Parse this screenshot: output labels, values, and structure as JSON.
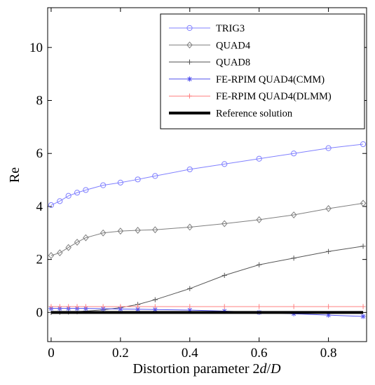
{
  "chart_data": {
    "type": "line",
    "title": "",
    "xlabel": "Distortion parameter 2d/D",
    "xlabel_parts": [
      {
        "text": "Distortion parameter 2",
        "italic": false
      },
      {
        "text": "d",
        "italic": true
      },
      {
        "text": "/",
        "italic": false
      },
      {
        "text": "D",
        "italic": true
      }
    ],
    "ylabel": "Re",
    "xlim": [
      -0.01,
      0.91
    ],
    "ylim": [
      -1.1,
      11.5
    ],
    "xticks": [
      0,
      0.2,
      0.4,
      0.6,
      0.8
    ],
    "xtick_labels": [
      "0",
      "0.2",
      "0.4",
      "0.6",
      "0.8"
    ],
    "yticks": [
      0,
      2,
      4,
      6,
      8,
      10
    ],
    "ytick_labels": [
      "0",
      "2",
      "4",
      "6",
      "8",
      "10"
    ],
    "grid": false,
    "legend_position": "top-right",
    "series": [
      {
        "name": "TRIG3",
        "color": "#8080ff",
        "marker": "circle",
        "x": [
          0,
          0.025,
          0.05,
          0.075,
          0.1,
          0.15,
          0.2,
          0.25,
          0.3,
          0.4,
          0.5,
          0.6,
          0.7,
          0.8,
          0.9
        ],
        "y": [
          4.05,
          4.2,
          4.4,
          4.52,
          4.62,
          4.8,
          4.9,
          5.02,
          5.15,
          5.4,
          5.6,
          5.8,
          6.0,
          6.2,
          6.35
        ]
      },
      {
        "name": "QUAD4",
        "color": "#7f7f7f",
        "marker": "diamond",
        "x": [
          0,
          0.025,
          0.05,
          0.075,
          0.1,
          0.15,
          0.2,
          0.25,
          0.3,
          0.4,
          0.5,
          0.6,
          0.7,
          0.8,
          0.9
        ],
        "y": [
          2.15,
          2.25,
          2.45,
          2.65,
          2.82,
          3.0,
          3.07,
          3.1,
          3.12,
          3.22,
          3.35,
          3.5,
          3.68,
          3.92,
          4.12
        ]
      },
      {
        "name": "QUAD8",
        "color": "#555555",
        "marker": "plus",
        "x": [
          0,
          0.025,
          0.05,
          0.075,
          0.1,
          0.15,
          0.2,
          0.25,
          0.3,
          0.4,
          0.5,
          0.6,
          0.7,
          0.8,
          0.9
        ],
        "y": [
          0.0,
          0.01,
          0.02,
          0.03,
          0.05,
          0.1,
          0.18,
          0.3,
          0.48,
          0.9,
          1.4,
          1.8,
          2.05,
          2.3,
          2.5
        ]
      },
      {
        "name": "FE-RPIM QUAD4(CMM)",
        "color": "#5050ee",
        "marker": "star",
        "x": [
          0,
          0.025,
          0.05,
          0.075,
          0.1,
          0.15,
          0.2,
          0.25,
          0.3,
          0.4,
          0.5,
          0.6,
          0.7,
          0.8,
          0.9
        ],
        "y": [
          0.15,
          0.15,
          0.15,
          0.15,
          0.15,
          0.14,
          0.13,
          0.12,
          0.11,
          0.09,
          0.05,
          0.0,
          -0.05,
          -0.1,
          -0.15
        ]
      },
      {
        "name": "FE-RPIM QUAD4(DLMM)",
        "color": "#ff8080",
        "marker": "plus",
        "x": [
          0,
          0.025,
          0.05,
          0.075,
          0.1,
          0.15,
          0.2,
          0.25,
          0.3,
          0.4,
          0.5,
          0.6,
          0.7,
          0.8,
          0.9
        ],
        "y": [
          0.22,
          0.22,
          0.22,
          0.22,
          0.22,
          0.22,
          0.22,
          0.22,
          0.22,
          0.22,
          0.22,
          0.22,
          0.22,
          0.22,
          0.22
        ]
      },
      {
        "name": "Reference solution",
        "color": "#000000",
        "marker": "none",
        "x": [
          0,
          0.9
        ],
        "y": [
          0,
          0
        ]
      }
    ]
  }
}
